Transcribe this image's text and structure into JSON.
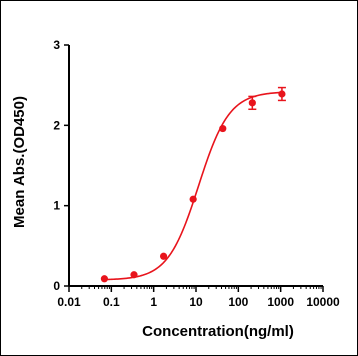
{
  "chart_data": {
    "type": "scatter",
    "xlabel": "Concentration(ng/ml)",
    "ylabel": "Mean Abs.(OD450)",
    "x_scale": "log",
    "xlim": [
      0.01,
      10000
    ],
    "ylim": [
      0,
      3
    ],
    "x_ticks": [
      "0.01",
      "0.1",
      "1",
      "10",
      "100",
      "1000",
      "10000"
    ],
    "y_ticks": [
      "0",
      "1",
      "2",
      "3"
    ],
    "grid": false,
    "series": [
      {
        "color": "#e8141c",
        "x": [
          0.0686,
          0.343,
          1.715,
          8.57,
          42.9,
          214,
          1071
        ],
        "y": [
          0.09,
          0.14,
          0.37,
          1.08,
          1.96,
          2.28,
          2.39
        ],
        "err": [
          0.02,
          0.02,
          0.02,
          0.02,
          0.03,
          0.08,
          0.08
        ],
        "fit": "4PL"
      }
    ]
  }
}
